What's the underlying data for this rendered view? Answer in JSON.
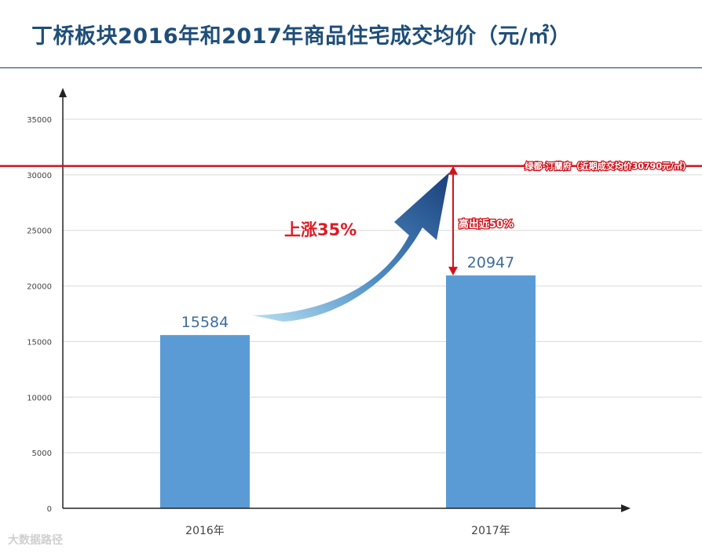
{
  "chart_data": {
    "type": "bar",
    "title": "丁桥板块2016年和2017年商品住宅成交均价（元/㎡）",
    "categories": [
      "2016年",
      "2017年"
    ],
    "values": [
      15584,
      20947
    ],
    "value_labels": [
      "15584",
      "20947"
    ],
    "ylim": [
      0,
      35000
    ],
    "yticks": [
      0,
      5000,
      10000,
      15000,
      20000,
      25000,
      30000,
      35000
    ],
    "grid": true,
    "bar_color": "#5b9bd5",
    "reference_line": {
      "value": 30790,
      "label": "绿都·汀蘭府（近期成交均价30790元/㎡）",
      "color": "#d0121b"
    },
    "annotations": {
      "rise_label": "上涨35%",
      "gap_label": "高出近50%"
    }
  },
  "footer": {
    "brand": "大数据路径"
  }
}
